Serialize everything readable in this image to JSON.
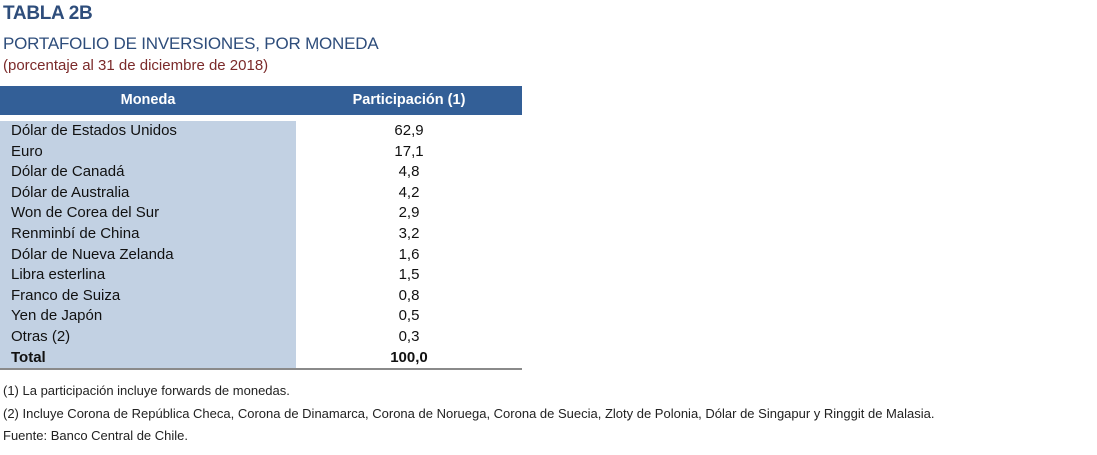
{
  "title": "TABLA 2B",
  "subtitle": "PORTAFOLIO DE INVERSIONES, POR MONEDA",
  "unit": "(porcentaje al 31 de diciembre de 2018)",
  "headers": {
    "col1": "Moneda",
    "col2": "Participación (1)"
  },
  "rows": [
    {
      "name": "Dólar de Estados Unidos",
      "value": "62,9"
    },
    {
      "name": "Euro",
      "value": "17,1"
    },
    {
      "name": "Dólar de Canadá",
      "value": "4,8"
    },
    {
      "name": "Dólar de Australia",
      "value": "4,2"
    },
    {
      "name": "Won de Corea del Sur",
      "value": "2,9"
    },
    {
      "name": "Renminbí de China",
      "value": "3,2"
    },
    {
      "name": "Dólar de Nueva Zelanda",
      "value": "1,6"
    },
    {
      "name": "Libra esterlina",
      "value": "1,5"
    },
    {
      "name": "Franco de Suiza",
      "value": "0,8"
    },
    {
      "name": "Yen de Japón",
      "value": "0,5"
    },
    {
      "name": "Otras (2)",
      "value": "0,3"
    }
  ],
  "total": {
    "name": "Total",
    "value": "100,0"
  },
  "notes": [
    "(1) La participación incluye forwards de monedas.",
    "(2) Incluye Corona de República Checa, Corona de Dinamarca, Corona de Noruega, Corona de Suecia, Zloty de Polonia, Dólar de Singapur y Ringgit de Malasia.",
    "Fuente: Banco Central de Chile."
  ]
}
